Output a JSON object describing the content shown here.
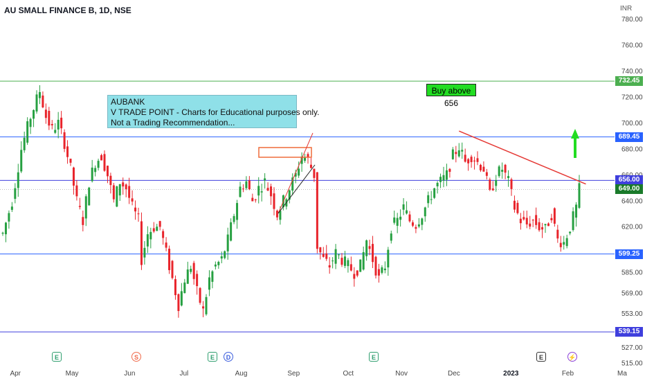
{
  "header": {
    "title": "AU SMALL FINANCE B, 1D, NSE",
    "currency": "INR"
  },
  "annotation_note": {
    "lines": [
      "AUBANK",
      "V TRADE POINT - Charts for Educational purposes only.",
      "Not a Trading Recommendation..."
    ]
  },
  "callout": {
    "text": "Buy above 656"
  },
  "price_tags": [
    {
      "label": "732.45",
      "value": 732.45,
      "color": "#4caf50"
    },
    {
      "label": "689.45",
      "value": 689.45,
      "color": "#2962ff"
    },
    {
      "label": "656.00",
      "value": 656.0,
      "color": "#3f3fdd"
    },
    {
      "label": "649.00",
      "value": 649.0,
      "color": "#1a7a2a"
    },
    {
      "label": "599.25",
      "value": 599.25,
      "color": "#2962ff"
    },
    {
      "label": "539.15",
      "value": 539.15,
      "color": "#3f3fdd"
    }
  ],
  "events": [
    {
      "symbol": "E",
      "color": "#2e9e6e",
      "date_index": 0
    },
    {
      "symbol": "S",
      "color": "#f06a4a",
      "date_index": 1
    },
    {
      "symbol": "E",
      "color": "#2e9e6e",
      "date_index": 2
    },
    {
      "symbol": "D",
      "color": "#3a5cdd",
      "date_index": 3
    },
    {
      "symbol": "E",
      "color": "#2e9e6e",
      "date_index": 4
    },
    {
      "symbol": "E",
      "color": "#333333",
      "date_index": 5
    },
    {
      "symbol": "⚡",
      "color": "#8a3fd8",
      "date_index": 6
    }
  ],
  "chart_data": {
    "type": "candlestick",
    "title": "AU SMALL FINANCE B, 1D, NSE",
    "ylabel": "INR",
    "ylim": [
      512,
      795
    ],
    "y_ticks": [
      780,
      760,
      740,
      720,
      700,
      680,
      660,
      640,
      620,
      599.25,
      585,
      569,
      553,
      539.15,
      527,
      515
    ],
    "y_tick_labels": [
      "780.00",
      "760.00",
      "740.00",
      "720.00",
      "700.00",
      "680.00",
      "660.00",
      "640.00",
      "620.00",
      "",
      "585.00",
      "569.00",
      "553.00",
      "",
      "527.00",
      "515.00"
    ],
    "x_labels": [
      "Apr",
      "May",
      "Jun",
      "Jul",
      "Aug",
      "Sep",
      "Oct",
      "Nov",
      "Dec",
      "2023",
      "Feb",
      "Ma"
    ],
    "x_label_positions": [
      1,
      19,
      38,
      56,
      74,
      91,
      109,
      126,
      143,
      161,
      180,
      198
    ],
    "horizontal_levels": [
      {
        "value": 732.45,
        "color": "#4caf50"
      },
      {
        "value": 689.45,
        "color": "#2962ff"
      },
      {
        "value": 656.0,
        "color": "#3f3fdd"
      },
      {
        "value": 599.25,
        "color": "#2962ff"
      },
      {
        "value": 539.15,
        "color": "#3f3fdd"
      }
    ],
    "last_price": 649.0,
    "trendline": {
      "from": [
        148,
        694
      ],
      "to": [
        186,
        651
      ],
      "color": "#e53935"
    },
    "anchors": [
      [
        0,
        615
      ],
      [
        3,
        640
      ],
      [
        6,
        680
      ],
      [
        9,
        705
      ],
      [
        12,
        725
      ],
      [
        14,
        705
      ],
      [
        16,
        695
      ],
      [
        18,
        700
      ],
      [
        20,
        685
      ],
      [
        22,
        665
      ],
      [
        24,
        640
      ],
      [
        26,
        625
      ],
      [
        28,
        655
      ],
      [
        30,
        670
      ],
      [
        32,
        675
      ],
      [
        34,
        660
      ],
      [
        36,
        640
      ],
      [
        38,
        655
      ],
      [
        40,
        650
      ],
      [
        42,
        635
      ],
      [
        44,
        625
      ],
      [
        45,
        595
      ],
      [
        47,
        615
      ],
      [
        49,
        620
      ],
      [
        51,
        620
      ],
      [
        53,
        600
      ],
      [
        55,
        580
      ],
      [
        57,
        560
      ],
      [
        59,
        580
      ],
      [
        61,
        590
      ],
      [
        63,
        570
      ],
      [
        65,
        555
      ],
      [
        67,
        580
      ],
      [
        69,
        590
      ],
      [
        71,
        595
      ],
      [
        73,
        610
      ],
      [
        75,
        630
      ],
      [
        77,
        650
      ],
      [
        79,
        655
      ],
      [
        81,
        640
      ],
      [
        83,
        650
      ],
      [
        85,
        655
      ],
      [
        87,
        645
      ],
      [
        89,
        630
      ],
      [
        91,
        640
      ],
      [
        93,
        650
      ],
      [
        95,
        660
      ],
      [
        97,
        675
      ],
      [
        99,
        672
      ],
      [
        101,
        660
      ],
      [
        102,
        605
      ],
      [
        104,
        595
      ],
      [
        106,
        590
      ],
      [
        108,
        600
      ],
      [
        110,
        595
      ],
      [
        112,
        590
      ],
      [
        114,
        585
      ],
      [
        116,
        590
      ],
      [
        118,
        610
      ],
      [
        120,
        595
      ],
      [
        122,
        580
      ],
      [
        124,
        590
      ],
      [
        126,
        620
      ],
      [
        128,
        625
      ],
      [
        130,
        635
      ],
      [
        132,
        625
      ],
      [
        134,
        622
      ],
      [
        136,
        630
      ],
      [
        138,
        640
      ],
      [
        140,
        650
      ],
      [
        142,
        655
      ],
      [
        144,
        660
      ],
      [
        146,
        675
      ],
      [
        148,
        682
      ],
      [
        150,
        670
      ],
      [
        152,
        675
      ],
      [
        154,
        670
      ],
      [
        156,
        665
      ],
      [
        158,
        645
      ],
      [
        160,
        660
      ],
      [
        162,
        665
      ],
      [
        164,
        655
      ],
      [
        166,
        635
      ],
      [
        168,
        625
      ],
      [
        170,
        622
      ],
      [
        172,
        625
      ],
      [
        174,
        620
      ],
      [
        176,
        618
      ],
      [
        178,
        630
      ],
      [
        180,
        610
      ],
      [
        182,
        608
      ],
      [
        184,
        620
      ],
      [
        186,
        635
      ],
      [
        187,
        649
      ]
    ]
  }
}
